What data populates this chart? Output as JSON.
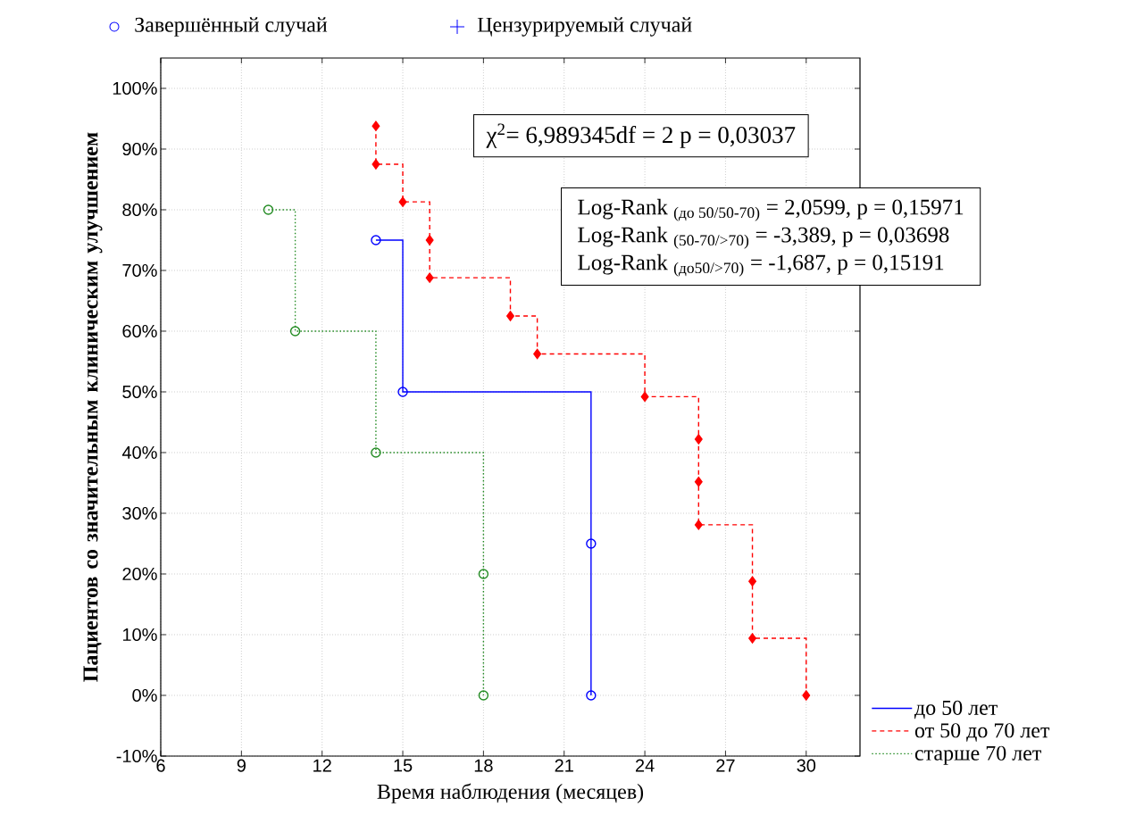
{
  "chart_data": {
    "type": "step",
    "xlabel": "Время наблюдения (месяцев)",
    "ylabel": "Пациентов со значительным клиническим улучшением",
    "xlim": [
      6,
      32
    ],
    "ylim": [
      -10,
      105
    ],
    "xticks": [
      6,
      9,
      12,
      15,
      18,
      21,
      24,
      27,
      30
    ],
    "yticks": [
      {
        "value": -10,
        "label": "-10%"
      },
      {
        "value": 0,
        "label": "0%"
      },
      {
        "value": 10,
        "label": "10%"
      },
      {
        "value": 20,
        "label": "20%"
      },
      {
        "value": 30,
        "label": "30%"
      },
      {
        "value": 40,
        "label": "40%"
      },
      {
        "value": 50,
        "label": "50%"
      },
      {
        "value": 60,
        "label": "60%"
      },
      {
        "value": 70,
        "label": "70%"
      },
      {
        "value": 80,
        "label": "80%"
      },
      {
        "value": 90,
        "label": "90%"
      },
      {
        "value": 100,
        "label": "100%"
      }
    ],
    "grid": true,
    "legend": "bottom right",
    "series": [
      {
        "name": "до 50 лет",
        "color": "#0000ff",
        "marker": "circle",
        "line_style": "solid",
        "x": [
          14,
          15,
          22,
          22
        ],
        "values": [
          75,
          50,
          25,
          0
        ]
      },
      {
        "name": "от 50 до 70 лет",
        "color": "#ff0000",
        "marker": "diamond",
        "line_style": "dashed",
        "x": [
          14,
          14,
          15,
          16,
          16,
          19,
          20,
          24,
          26,
          26,
          26,
          28,
          28,
          30
        ],
        "values": [
          93.8,
          87.5,
          81.3,
          75,
          68.8,
          62.5,
          56.25,
          49.2,
          42.2,
          35.2,
          28.1,
          18.8,
          9.4,
          0
        ]
      },
      {
        "name": "старше 70 лет",
        "color": "#228b22",
        "marker": "circle",
        "line_style": "dotted",
        "x": [
          10,
          11,
          14,
          18,
          18
        ],
        "values": [
          80,
          60,
          40,
          20,
          0
        ]
      }
    ],
    "annotations": [
      "Завершённый случай",
      "Цензурируемый случай",
      "χ$^{2}$= 6,989345df = 2 p = 0,03037",
      "Log-Rank $_{(до 50/50-70)}$ = 2,0599, p = 0,15971",
      "Log-Rank $_{(50-70/>70)}$ = -3,389, p = 0,03698",
      "Log-Rank $_{(до50/>70)}$ = -1,687, p = 0,15191"
    ]
  }
}
